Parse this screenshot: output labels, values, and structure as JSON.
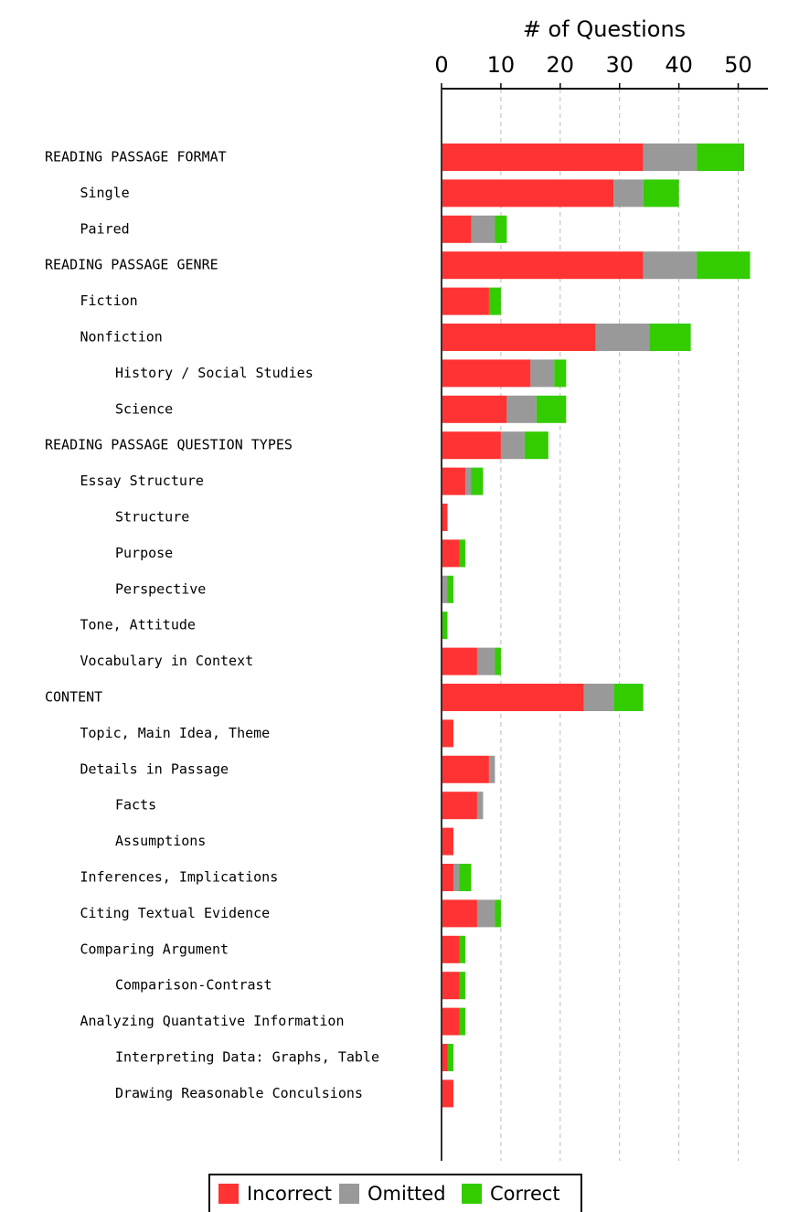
{
  "chart_data": {
    "type": "barh",
    "stacked": true,
    "xlabel": "# of Questions",
    "categories": [
      "READING PASSAGE FORMAT",
      "Single",
      "Paired",
      "READING PASSAGE GENRE",
      "Fiction",
      "Nonfiction",
      "History / Social Studies",
      "Science",
      "READING PASSAGE QUESTION TYPES",
      "Essay Structure",
      "Structure",
      "Purpose",
      "Perspective",
      "Tone, Attitude",
      "Vocabulary in Context",
      "CONTENT",
      "Topic, Main Idea, Theme",
      "Details in Passage",
      "Facts",
      "Assumptions",
      "Inferences, Implications",
      "Citing Textual Evidence",
      "Comparing Argument",
      "Comparison-Contrast",
      "Analyzing Quantative Information",
      "Interpreting Data: Graphs, Table",
      "Drawing Reasonable Conculsions"
    ],
    "series": [
      {
        "name": "Incorrect",
        "color": "#ff3333",
        "values": [
          34,
          29,
          5,
          34,
          8,
          26,
          15,
          11,
          10,
          4,
          1,
          3,
          0,
          0,
          6,
          24,
          2,
          8,
          6,
          2,
          2,
          6,
          3,
          3,
          3,
          1,
          2
        ]
      },
      {
        "name": "Omitted",
        "color": "#999999",
        "values": [
          9,
          5,
          4,
          9,
          0,
          9,
          4,
          5,
          4,
          1,
          0,
          0,
          1,
          0,
          3,
          5,
          0,
          1,
          1,
          0,
          1,
          3,
          0,
          0,
          0,
          0,
          0
        ]
      },
      {
        "name": "Correct",
        "color": "#33cc00",
        "values": [
          8,
          6,
          2,
          9,
          2,
          7,
          2,
          5,
          4,
          2,
          0,
          1,
          1,
          1,
          1,
          5,
          0,
          0,
          0,
          0,
          2,
          1,
          1,
          1,
          1,
          1,
          0
        ]
      }
    ],
    "xlim": [
      0,
      55
    ],
    "xticks": [
      0,
      10,
      20,
      30,
      40,
      50
    ],
    "grid": true,
    "legend": "bottom"
  }
}
